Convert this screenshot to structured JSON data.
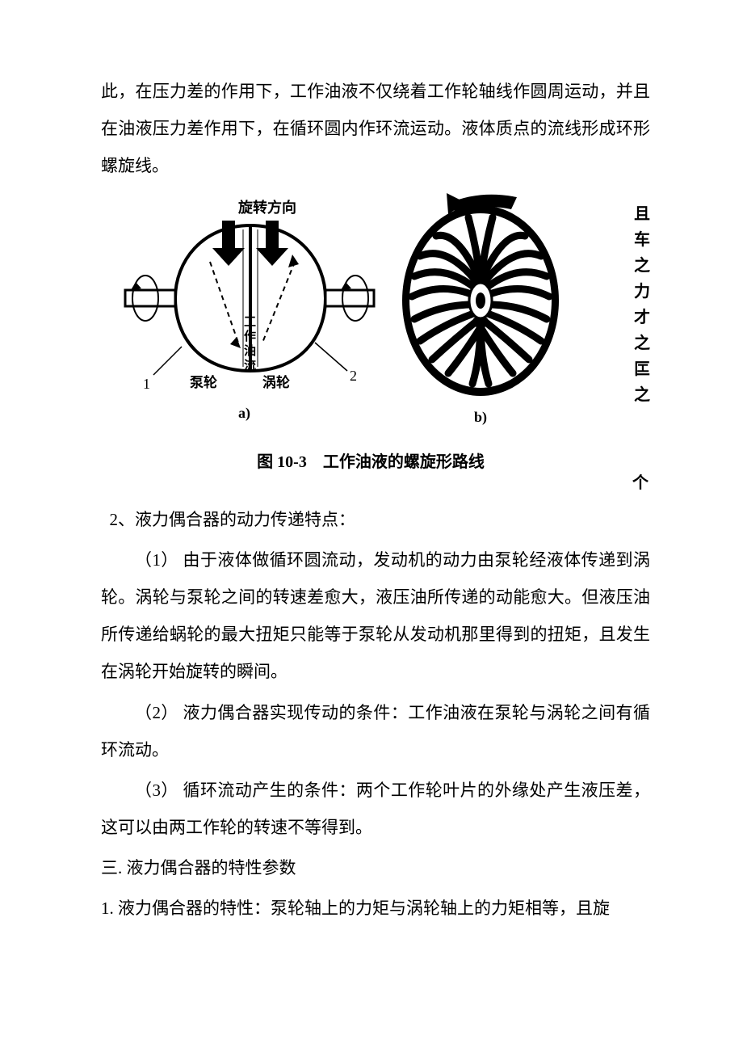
{
  "intro": "此，在压力差的作用下，工作油液不仅绕着工作轮轴线作圆周运动，并且在油液压力差作用下，在循环圆内作环流运动。液体质点的流线形成环形螺旋线。",
  "figure": {
    "rotation_label": "旋转方向",
    "pump_label": "泵轮",
    "flow_label_1": "工",
    "flow_label_2": "作",
    "flow_label_3": "油",
    "flow_label_4": "流",
    "turbine_label": "涡轮",
    "marker_1": "1",
    "marker_2": "2",
    "sub_a": "a)",
    "sub_b": "b)",
    "caption": "图 10-3　工作油液的螺旋形路线",
    "side_chars": [
      "且",
      "车",
      "之",
      "力",
      "才",
      "之",
      "匞",
      "之"
    ],
    "side_extra": "个"
  },
  "section2": {
    "heading": "2、液力偶合器的动力传递特点：",
    "item1": "（1） 由于液体做循环圆流动，发动机的动力由泵轮经液体传递到涡轮。涡轮与泵轮之间的转速差愈大，液压油所传递的动能愈大。但液压油所传递给蜗轮的最大扭矩只能等于泵轮从发动机那里得到的扭矩，且发生在涡轮开始旋转的瞬间。",
    "item2": "（2） 液力偶合器实现传动的条件：工作油液在泵轮与涡轮之间有循环流动。",
    "item3": "（3） 循环流动产生的条件：两个工作轮叶片的外缘处产生液压差，这可以由两工作轮的转速不等得到。"
  },
  "section3": {
    "heading": "三. 液力偶合器的特性参数",
    "item1": "1.  液力偶合器的特性：泵轮轴上的力矩与涡轮轴上的力矩相等，且旋"
  },
  "colors": {
    "text": "#000000",
    "background": "#ffffff",
    "stroke": "#000000"
  }
}
